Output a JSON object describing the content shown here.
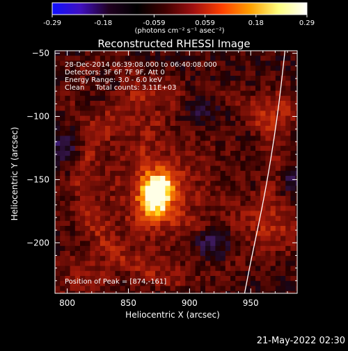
{
  "colorbar": {
    "ticks": [
      "-0.29",
      "-0.18",
      "-0.059",
      "0.059",
      "0.18",
      "0.29"
    ],
    "units_label": "(photons cm⁻² s⁻¹ asec⁻²)",
    "colormap_stops": [
      "#1010ff",
      "#4010c0",
      "#200020",
      "#000000",
      "#400000",
      "#a01010",
      "#ff4000",
      "#ffa000",
      "#ffff80",
      "#ffffff"
    ]
  },
  "title": "Reconstructed RHESSI Image",
  "info": {
    "line1": "28-Dec-2014 06:39:08.000 to 06:40:08.000",
    "line2": "Detectors: 3F 6F 7F 9F, Att 0",
    "line3": "Energy Range: 3.0 - 6.0 keV",
    "line4": "Clean     Total counts: 3.11E+03",
    "peak": "Position of Peak = [874,-161]"
  },
  "timestamp": "21-May-2022 02:30",
  "chart_data": {
    "type": "heatmap",
    "title": "Reconstructed RHESSI Image",
    "xlabel": "Heliocentric X (arcsec)",
    "ylabel": "Heliocentric Y (arcsec)",
    "xlim": [
      790,
      988
    ],
    "ylim": [
      -240,
      -48
    ],
    "x_ticks": [
      800,
      850,
      900,
      950
    ],
    "x_tick_labels": [
      "800",
      "850",
      "900",
      "950"
    ],
    "y_ticks": [
      -50,
      -100,
      -150,
      -200
    ],
    "y_tick_labels": [
      "−50",
      "−100",
      "−150",
      "−200"
    ],
    "color_range": [
      -0.29,
      0.29
    ],
    "peak": [
      874,
      -161
    ],
    "limb_curve": {
      "color": "#ffffff",
      "points": [
        [
          978,
          -48
        ],
        [
          972,
          -100
        ],
        [
          962,
          -160
        ],
        [
          950,
          -215
        ],
        [
          945,
          -240
        ]
      ]
    }
  }
}
